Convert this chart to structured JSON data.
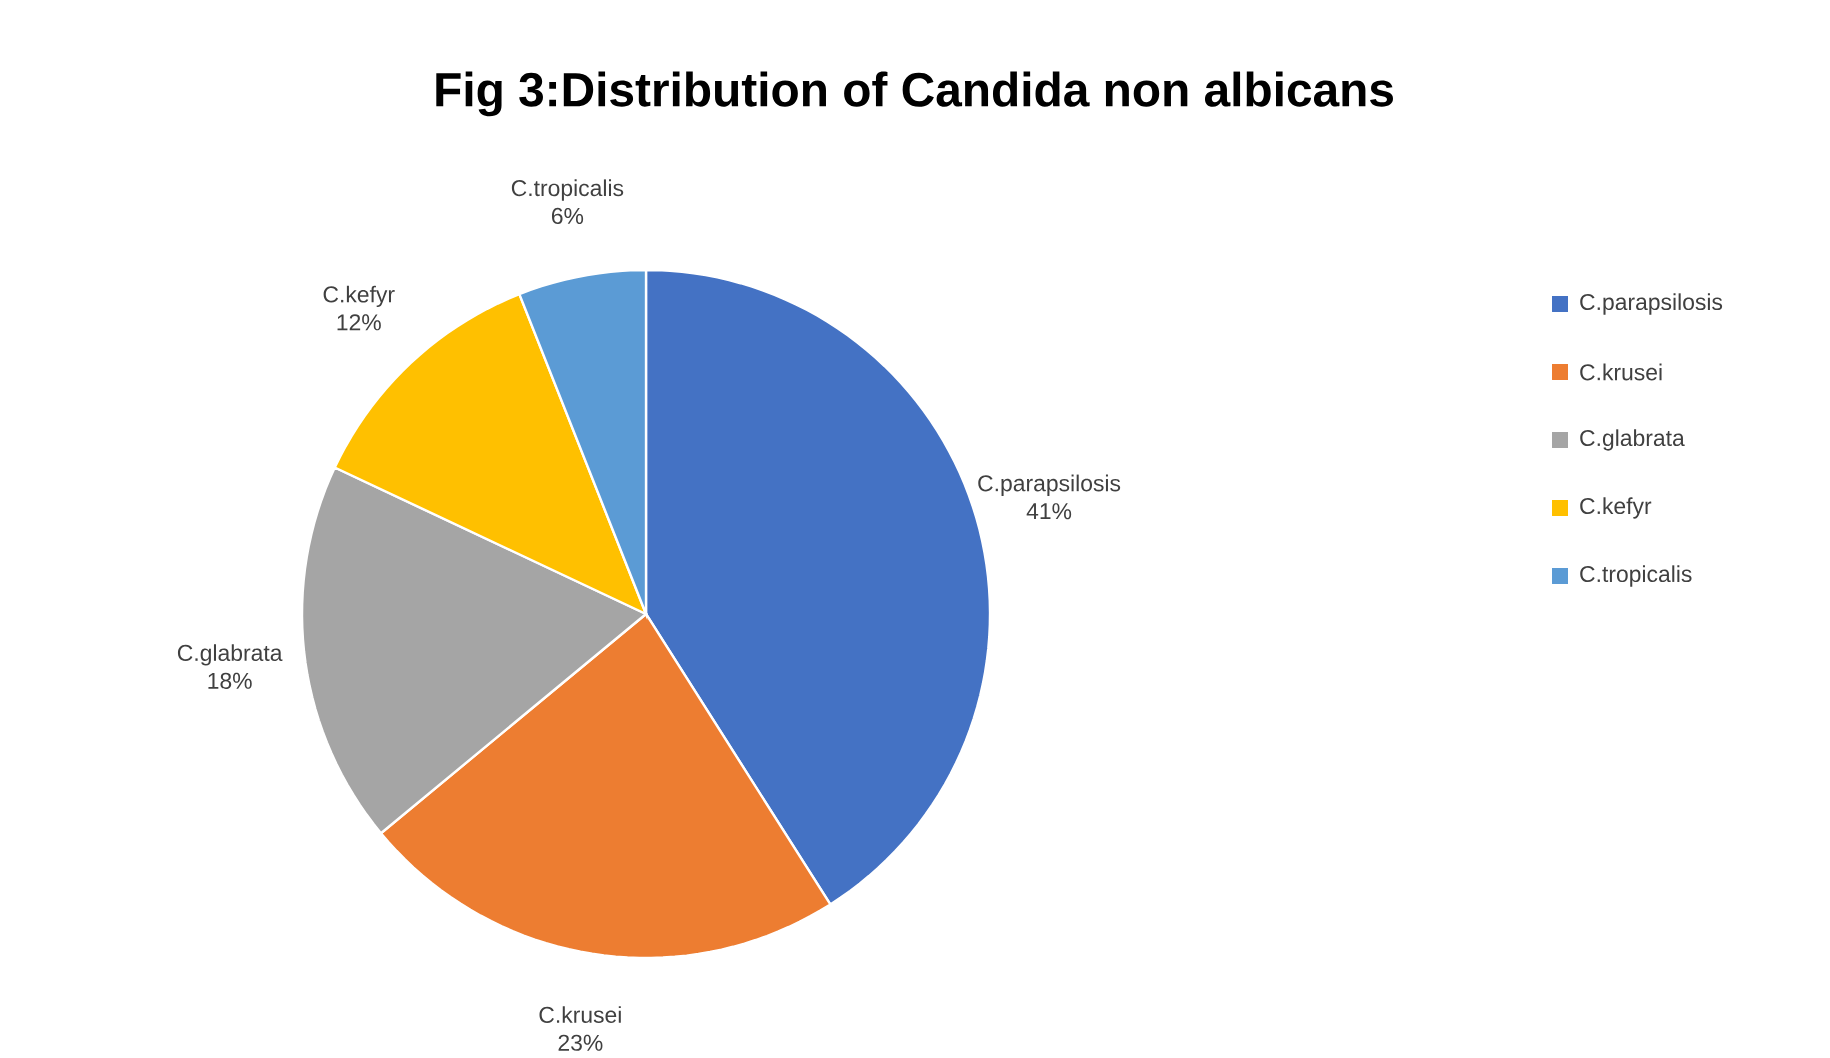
{
  "chart_data": {
    "type": "pie",
    "title": "Fig 3:Distribution of Candida non albicans",
    "categories": [
      "C.parapsilosis",
      "C.krusei",
      "C.glabrata",
      "C.kefyr",
      "C.tropicalis"
    ],
    "values": [
      41,
      23,
      18,
      12,
      6
    ],
    "colors": [
      "#4472c4",
      "#ed7d31",
      "#a5a5a5",
      "#ffc000",
      "#5b9bd5"
    ],
    "value_labels": [
      "41%",
      "23%",
      "18%",
      "12%",
      "6%"
    ],
    "legend": "right"
  }
}
